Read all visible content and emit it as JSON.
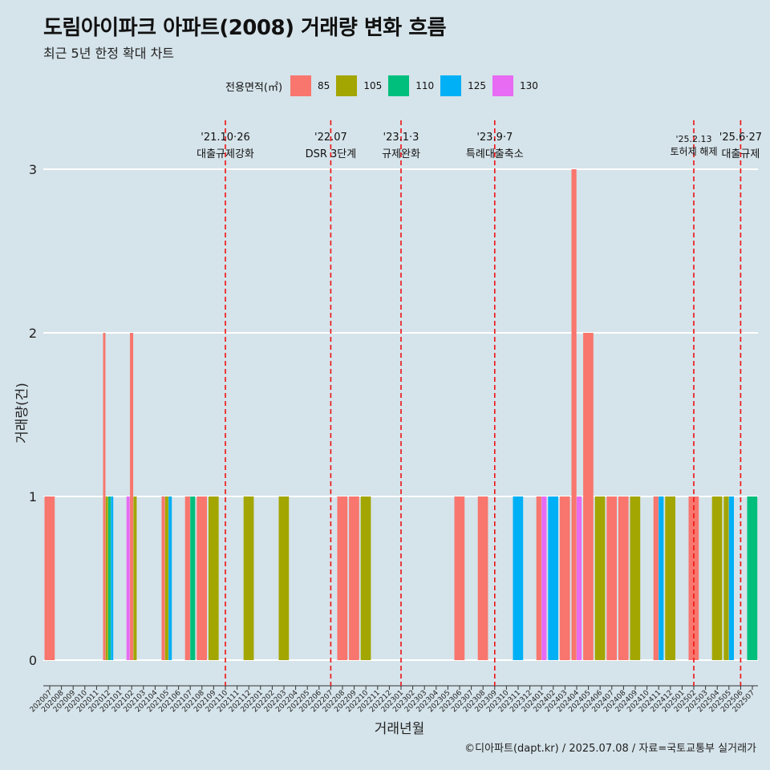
{
  "title": "도림아이파크 아파트(2008) 거래량 변화 흐름",
  "subtitle": "최근 5년 한정 확대 차트",
  "caption": "©디아파트(dapt.kr) / 2025.07.08 / 자료=국토교통부 실거래가",
  "legend": {
    "title": "전용면적(㎡)",
    "items": [
      {
        "label": "85",
        "color": "#F8766D"
      },
      {
        "label": "105",
        "color": "#A3A500"
      },
      {
        "label": "110",
        "color": "#00BF7D"
      },
      {
        "label": "125",
        "color": "#00B0F6"
      },
      {
        "label": "130",
        "color": "#E76BF3"
      }
    ]
  },
  "chart_data": {
    "type": "bar",
    "stacked": false,
    "xlabel": "거래년월",
    "ylabel": "거래량(건)",
    "ylim": [
      0,
      3
    ],
    "yticks": [
      0,
      1,
      2,
      3
    ],
    "grid": true,
    "legend_position": "top",
    "categories": [
      "202007",
      "202008",
      "202009",
      "202010",
      "202011",
      "202012",
      "202101",
      "202102",
      "202103",
      "202104",
      "202105",
      "202106",
      "202107",
      "202108",
      "202109",
      "202110",
      "202111",
      "202112",
      "202201",
      "202202",
      "202203",
      "202204",
      "202205",
      "202206",
      "202207",
      "202208",
      "202209",
      "202210",
      "202211",
      "202212",
      "202301",
      "202302",
      "202303",
      "202304",
      "202305",
      "202306",
      "202307",
      "202308",
      "202309",
      "202310",
      "202311",
      "202312",
      "202401",
      "202402",
      "202403",
      "202404",
      "202405",
      "202406",
      "202407",
      "202408",
      "202409",
      "202410",
      "202411",
      "202412",
      "202501",
      "202502",
      "202503",
      "202504",
      "202505",
      "202506",
      "202507"
    ],
    "bars": [
      {
        "month": "202007",
        "groups": [
          {
            "area": "85",
            "count": 1
          }
        ]
      },
      {
        "month": "202012",
        "groups": [
          {
            "area": "85",
            "count": 2
          },
          {
            "area": "105",
            "count": 1
          },
          {
            "area": "110",
            "count": 1
          },
          {
            "area": "125",
            "count": 1
          }
        ]
      },
      {
        "month": "202102",
        "groups": [
          {
            "area": "130",
            "count": 1
          },
          {
            "area": "85",
            "count": 2
          },
          {
            "area": "105",
            "count": 1
          }
        ]
      },
      {
        "month": "202105",
        "groups": [
          {
            "area": "85",
            "count": 1
          },
          {
            "area": "105",
            "count": 1
          },
          {
            "area": "125",
            "count": 1
          }
        ]
      },
      {
        "month": "202107",
        "groups": [
          {
            "area": "85",
            "count": 1
          },
          {
            "area": "110",
            "count": 1
          }
        ]
      },
      {
        "month": "202108",
        "groups": [
          {
            "area": "85",
            "count": 1
          }
        ]
      },
      {
        "month": "202109",
        "groups": [
          {
            "area": "105",
            "count": 1
          }
        ]
      },
      {
        "month": "202112",
        "groups": [
          {
            "area": "105",
            "count": 1
          }
        ]
      },
      {
        "month": "202203",
        "groups": [
          {
            "area": "105",
            "count": 1
          }
        ]
      },
      {
        "month": "202208",
        "groups": [
          {
            "area": "85",
            "count": 1
          }
        ]
      },
      {
        "month": "202209",
        "groups": [
          {
            "area": "85",
            "count": 1
          }
        ]
      },
      {
        "month": "202210",
        "groups": [
          {
            "area": "105",
            "count": 1
          }
        ]
      },
      {
        "month": "202306",
        "groups": [
          {
            "area": "85",
            "count": 1
          }
        ]
      },
      {
        "month": "202308",
        "groups": [
          {
            "area": "85",
            "count": 1
          }
        ]
      },
      {
        "month": "202311",
        "groups": [
          {
            "area": "125",
            "count": 1
          }
        ]
      },
      {
        "month": "202401",
        "groups": [
          {
            "area": "85",
            "count": 1
          },
          {
            "area": "130",
            "count": 1
          }
        ]
      },
      {
        "month": "202402",
        "groups": [
          {
            "area": "125",
            "count": 1
          }
        ]
      },
      {
        "month": "202403",
        "groups": [
          {
            "area": "85",
            "count": 1
          }
        ]
      },
      {
        "month": "202404",
        "groups": [
          {
            "area": "85",
            "count": 3
          },
          {
            "area": "130",
            "count": 1
          }
        ]
      },
      {
        "month": "202405",
        "groups": [
          {
            "area": "85",
            "count": 2
          }
        ]
      },
      {
        "month": "202406",
        "groups": [
          {
            "area": "105",
            "count": 1
          }
        ]
      },
      {
        "month": "202407",
        "groups": [
          {
            "area": "85",
            "count": 1
          }
        ]
      },
      {
        "month": "202408",
        "groups": [
          {
            "area": "85",
            "count": 1
          }
        ]
      },
      {
        "month": "202409",
        "groups": [
          {
            "area": "105",
            "count": 1
          }
        ]
      },
      {
        "month": "202411",
        "groups": [
          {
            "area": "85",
            "count": 1
          },
          {
            "area": "125",
            "count": 1
          }
        ]
      },
      {
        "month": "202412",
        "groups": [
          {
            "area": "105",
            "count": 1
          }
        ]
      },
      {
        "month": "202502",
        "groups": [
          {
            "area": "85",
            "count": 1
          }
        ]
      },
      {
        "month": "202504",
        "groups": [
          {
            "area": "105",
            "count": 1
          }
        ]
      },
      {
        "month": "202505",
        "groups": [
          {
            "area": "105",
            "count": 1
          },
          {
            "area": "125",
            "count": 1
          }
        ]
      },
      {
        "month": "202507",
        "groups": [
          {
            "area": "110",
            "count": 1
          }
        ]
      }
    ],
    "annotations": [
      {
        "month": "202110",
        "date": "'21.10·26",
        "text": "대출규제강화"
      },
      {
        "month": "202207",
        "date": "'22.07",
        "text": "DSR 3단계"
      },
      {
        "month": "202301",
        "date": "'23.1·3",
        "text": "규제완화"
      },
      {
        "month": "202309",
        "date": "'23.9·7",
        "text": "특례대출축소"
      },
      {
        "month": "202502",
        "date": "'25.2.13",
        "text": "토허제 해제"
      },
      {
        "month": "202506",
        "date": "'25.6·27",
        "text": "대출규제"
      }
    ]
  }
}
